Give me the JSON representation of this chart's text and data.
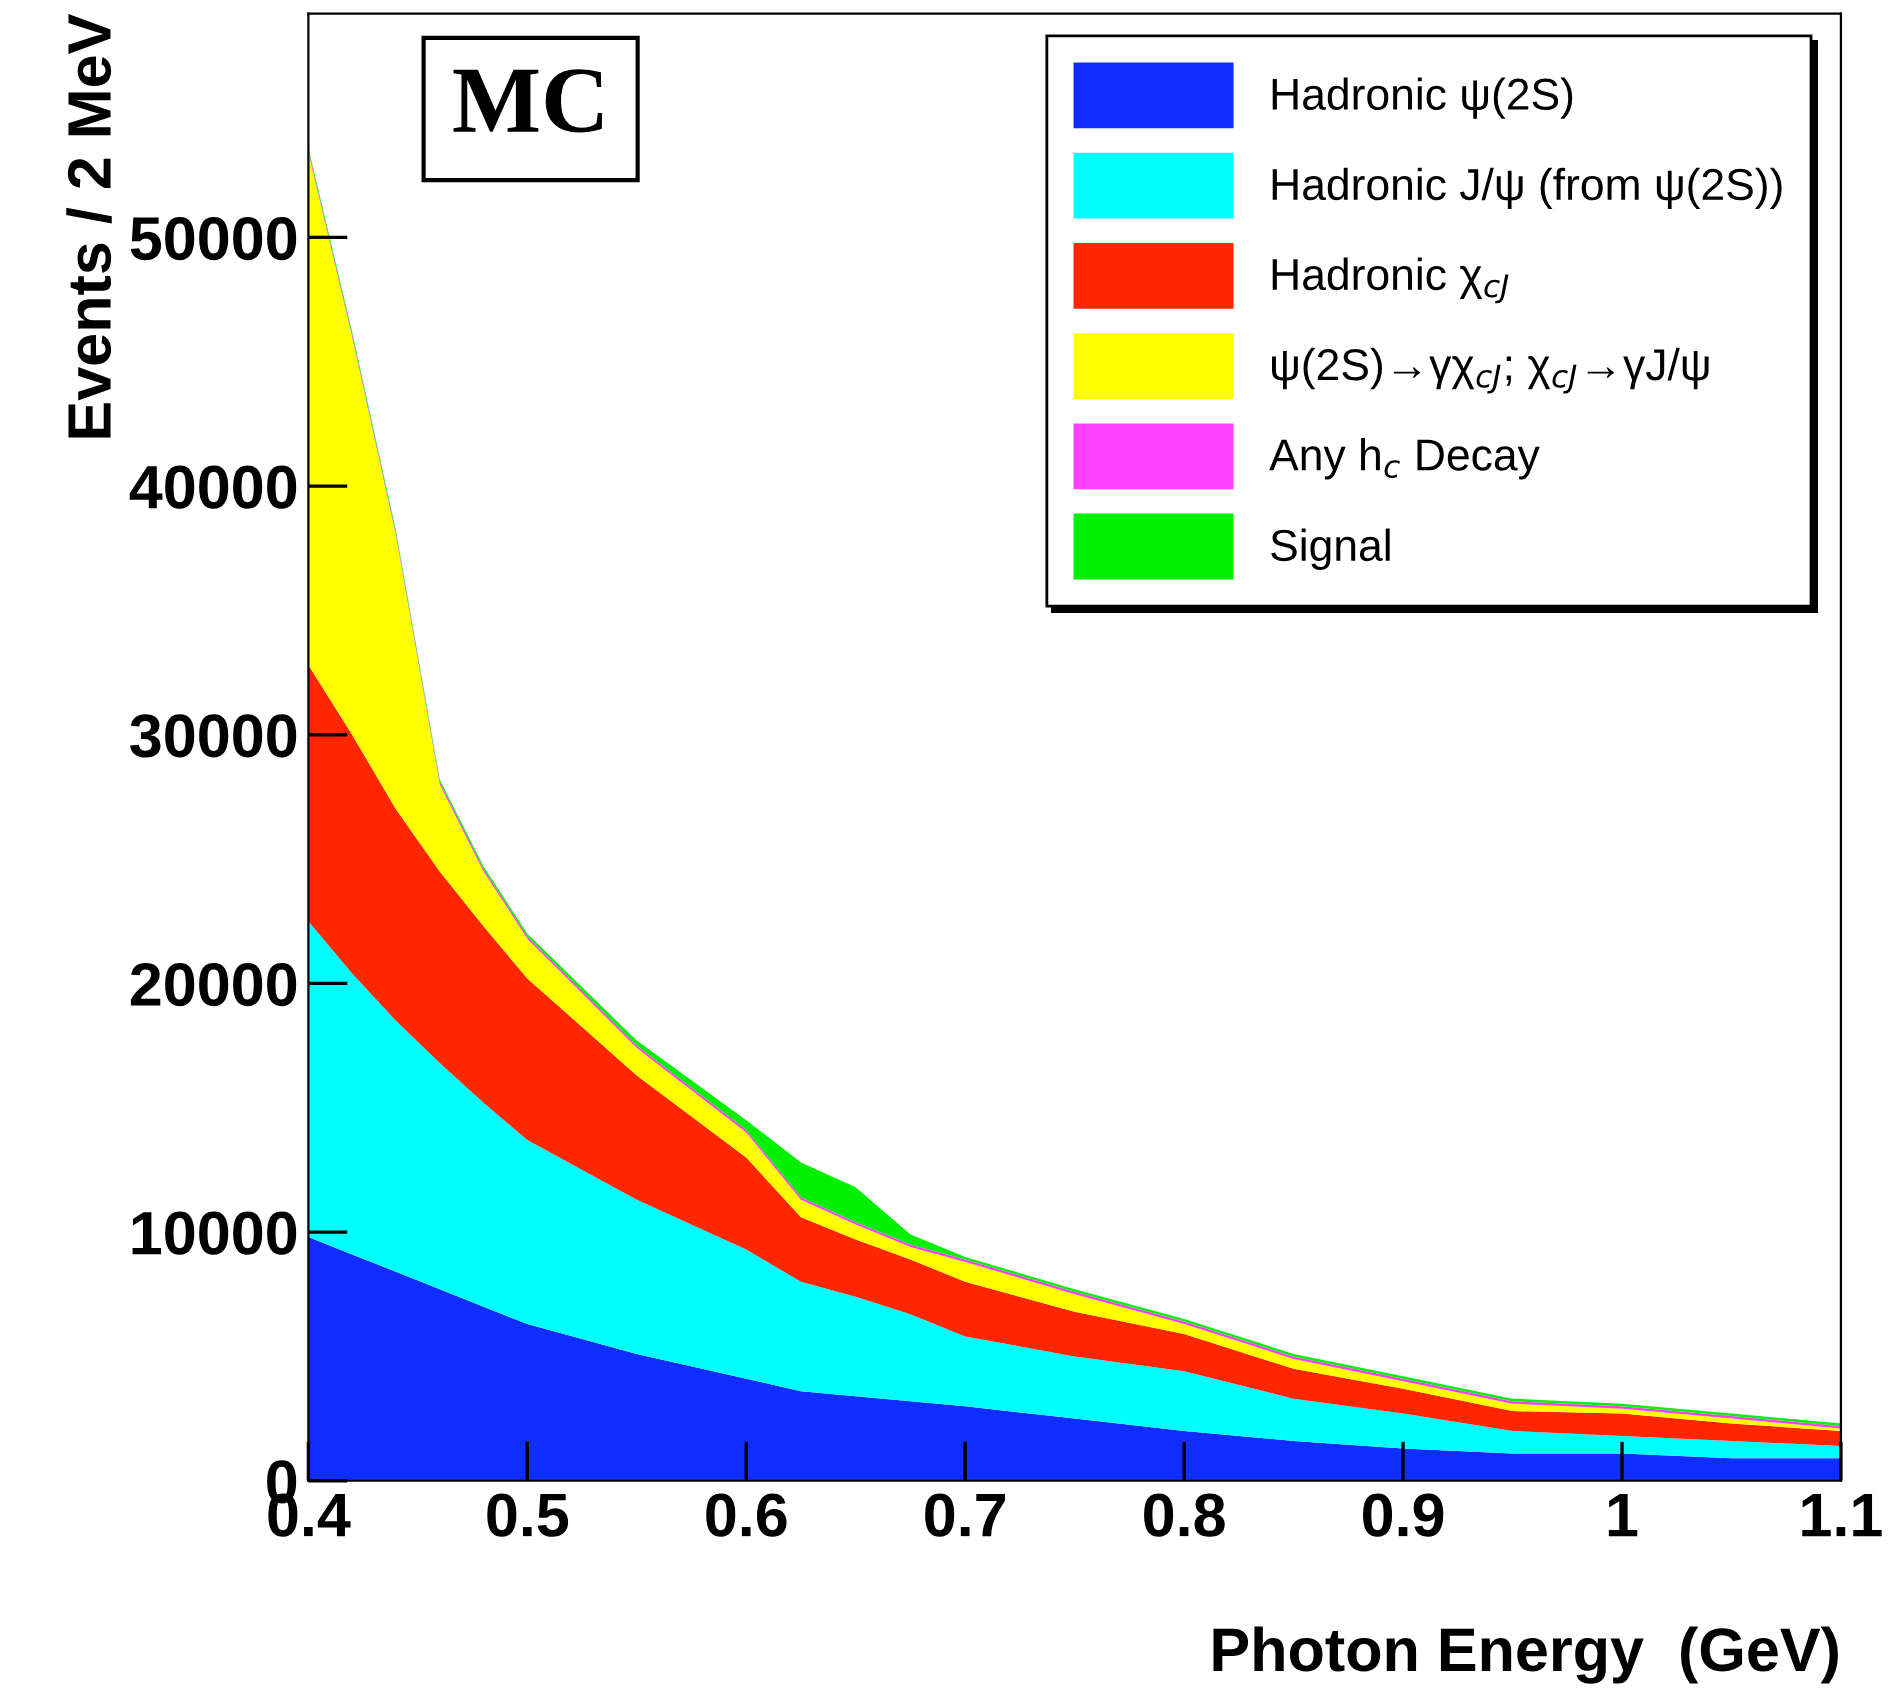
{
  "chart_data": {
    "type": "area",
    "stacked": true,
    "xlabel": "Photon Energy  (GeV)",
    "ylabel": "Events / 2 MeV",
    "annotations": [
      "MC"
    ],
    "x": [
      0.4,
      0.42,
      0.44,
      0.46,
      0.48,
      0.5,
      0.55,
      0.6,
      0.625,
      0.65,
      0.675,
      0.7,
      0.75,
      0.8,
      0.85,
      0.9,
      0.95,
      1.0,
      1.05,
      1.1
    ],
    "series": [
      {
        "name": "Hadronic ψ(2S)",
        "color": "#0f2dff",
        "values": [
          9800,
          9100,
          8400,
          7700,
          7000,
          6300,
          5100,
          4100,
          3600,
          3400,
          3200,
          3000,
          2500,
          2000,
          1600,
          1300,
          1100,
          1100,
          900,
          900
        ]
      },
      {
        "name": "Hadronic J/ψ (from ψ(2S))",
        "color": "#00ffff",
        "values": [
          12700,
          11300,
          10100,
          9100,
          8200,
          7400,
          6200,
          5200,
          4400,
          4000,
          3500,
          2800,
          2500,
          2400,
          1700,
          1400,
          900,
          700,
          700,
          500
        ]
      },
      {
        "name": "Hadronic χ$_{cJ}$",
        "color": "#ff2600",
        "values": [
          10300,
          9600,
          8500,
          7700,
          7100,
          6500,
          5000,
          3700,
          2600,
          2300,
          2200,
          2200,
          1800,
          1500,
          1200,
          1000,
          800,
          900,
          700,
          600
        ]
      },
      {
        "name": "ψ(2S)→γχ$_{cJ}$; χ$_{cJ}$→γJ/ψ",
        "color": "#ffff00",
        "values": [
          20600,
          16000,
          11000,
          3500,
          2200,
          1600,
          1100,
          1000,
          700,
          600,
          500,
          800,
          700,
          400,
          400,
          300,
          300,
          200,
          200,
          100
        ]
      },
      {
        "name": "Any h$_{c}$ Decay",
        "color": "#ff40ff",
        "values": [
          100,
          100,
          100,
          100,
          100,
          100,
          100,
          100,
          100,
          100,
          100,
          100,
          100,
          100,
          100,
          100,
          100,
          100,
          100,
          100
        ]
      },
      {
        "name": "Signal",
        "color": "#00f000",
        "values": [
          100,
          100,
          100,
          100,
          100,
          100,
          200,
          400,
          1400,
          1400,
          400,
          100,
          100,
          100,
          100,
          100,
          100,
          100,
          100,
          100
        ]
      }
    ],
    "xlim": [
      0.4,
      1.1
    ],
    "xticks": [
      0.4,
      0.5,
      0.6,
      0.7,
      0.8,
      0.9,
      1,
      1.1
    ],
    "ylim": [
      0,
      59000
    ],
    "yticks": [
      0,
      10000,
      20000,
      30000,
      40000,
      50000
    ],
    "grid": false,
    "legend": "top right"
  }
}
